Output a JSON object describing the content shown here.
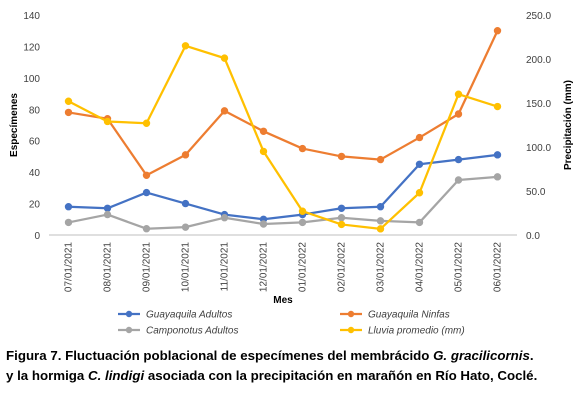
{
  "chart_data": {
    "type": "line",
    "xlabel": "Mes",
    "ylabel": "Especímenes",
    "y2label": "Precipitación (mm)",
    "ylim": [
      0,
      140
    ],
    "y2lim": [
      0,
      250
    ],
    "yticks": [
      "0",
      "20",
      "40",
      "60",
      "80",
      "100",
      "120",
      "140"
    ],
    "y2ticks": [
      "0.0",
      "50.0",
      "100.0",
      "150.0",
      "200.0",
      "250.0"
    ],
    "categories": [
      "07/01/2021",
      "08/01/2021",
      "09/01/2021",
      "10/01/2021",
      "11/01/2021",
      "12/01/2021",
      "01/01/2022",
      "02/01/2022",
      "03/01/2022",
      "04/01/2022",
      "05/01/2022",
      "06/01/2022"
    ],
    "series": [
      {
        "name": "Guayaquila Adultos",
        "axis": "left",
        "color": "#4472C4",
        "values": [
          18,
          17,
          27,
          20,
          13,
          10,
          13,
          17,
          18,
          45,
          48,
          51
        ]
      },
      {
        "name": "Guayaquila Ninfas",
        "axis": "left",
        "color": "#ED7D31",
        "values": [
          78,
          74,
          38,
          51,
          79,
          66,
          55,
          50,
          48,
          62,
          77,
          130
        ]
      },
      {
        "name": "Camponotus Adultos",
        "axis": "left",
        "color": "#A5A5A5",
        "values": [
          8,
          13,
          4,
          5,
          11,
          7,
          8,
          11,
          9,
          8,
          35,
          37
        ]
      },
      {
        "name": "Lluvia promedio (mm)",
        "axis": "right",
        "color": "#FFC000",
        "values": [
          152,
          129,
          127,
          215,
          201,
          95,
          27,
          12,
          7,
          48,
          160,
          146
        ]
      }
    ],
    "grid": false,
    "legend": "bottom"
  },
  "caption": {
    "line1_a": "Figura 7. Fluctuación poblacional de especímenes del membrácido ",
    "line1_b": "G. gracilicornis",
    "line1_c": ".",
    "line2_a": "y la hormiga ",
    "line2_b": "C. lindigi",
    "line2_c": " asociada con la precipitación en marañón en Río Hato, Coclé."
  }
}
